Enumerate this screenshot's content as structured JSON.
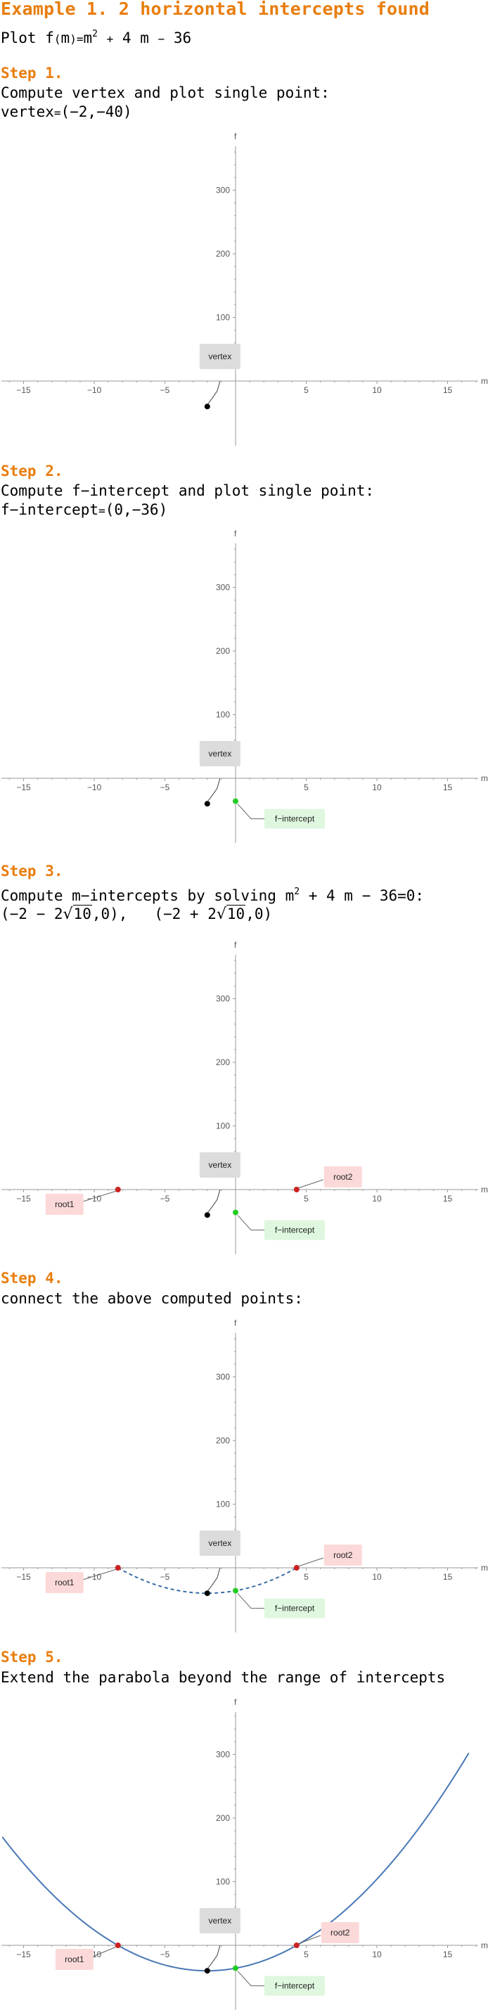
{
  "title": "Example 1. 2 horizontal intercepts found",
  "intro": {
    "plot_word": "Plot",
    "f": "f",
    "arg_open": "(",
    "m": "m",
    "arg_close": ")",
    "eq": "=",
    "m2_base": "m",
    "m2_exp": "2",
    "plus": "+",
    "four": "4",
    "space_m": "m",
    "minus": "−",
    "c": "36"
  },
  "steps": [
    {
      "heading": "Step 1.",
      "text": "Compute vertex and plot single point:",
      "result_label": "vertex",
      "result_value": "(−2,−40)"
    },
    {
      "heading": "Step 2.",
      "text": "Compute f−intercept and plot single point:",
      "result_label": "f−intercept",
      "result_value": "(0,−36)"
    },
    {
      "heading": "Step 3.",
      "text_a": "Compute m−intercepts by solving m",
      "text_exp": "2",
      "text_b": " + 4 m − 36=0:",
      "root1_a": "(−2 − 2",
      "root1_rad": "10",
      "root1_b": ",0),",
      "root2_a": "(−2 + 2",
      "root2_rad": "10",
      "root2_b": ",0)"
    },
    {
      "heading": "Step 4.",
      "text": "connect the above computed points:"
    },
    {
      "heading": "Step 5.",
      "text": "Extend the parabola beyond the range of intercepts"
    }
  ],
  "plot_labels": {
    "x_axis": "m",
    "y_axis": "f",
    "vertex": "vertex",
    "f_intercept": "f−intercept",
    "root1": "root1",
    "root2": "root2"
  },
  "chart_data": [
    {
      "type": "scatter",
      "points": [
        {
          "name": "vertex",
          "x": -2,
          "y": -40
        }
      ],
      "xlim": [
        -19,
        18
      ],
      "ylim": [
        -60,
        380
      ],
      "x_ticks": [
        -15,
        -10,
        -5,
        5,
        10,
        15
      ],
      "y_ticks": [
        100,
        200,
        300
      ],
      "xlabel": "m",
      "ylabel": "f",
      "colors": {
        "vertex": "#000000"
      }
    },
    {
      "type": "scatter",
      "points": [
        {
          "name": "vertex",
          "x": -2,
          "y": -40
        },
        {
          "name": "f-intercept",
          "x": 0,
          "y": -36
        }
      ],
      "xlim": [
        -19,
        18
      ],
      "ylim": [
        -60,
        380
      ],
      "x_ticks": [
        -15,
        -10,
        -5,
        5,
        10,
        15
      ],
      "y_ticks": [
        100,
        200,
        300
      ],
      "xlabel": "m",
      "ylabel": "f",
      "colors": {
        "vertex": "#000000",
        "f-intercept": "#22cc22"
      }
    },
    {
      "type": "scatter",
      "points": [
        {
          "name": "vertex",
          "x": -2,
          "y": -40
        },
        {
          "name": "f-intercept",
          "x": 0,
          "y": -36
        },
        {
          "name": "root1",
          "x": -8.32,
          "y": 0
        },
        {
          "name": "root2",
          "x": 4.32,
          "y": 0
        }
      ],
      "xlim": [
        -19,
        18
      ],
      "ylim": [
        -60,
        380
      ],
      "x_ticks": [
        -15,
        -10,
        -5,
        5,
        10,
        15
      ],
      "y_ticks": [
        100,
        200,
        300
      ],
      "xlabel": "m",
      "ylabel": "f",
      "colors": {
        "vertex": "#000000",
        "f-intercept": "#22cc22",
        "root": "#cc2222"
      }
    },
    {
      "type": "line",
      "function": "m^2+4m-36",
      "x_range": [
        -8.32,
        4.32
      ],
      "dashed": true,
      "points": [
        {
          "name": "vertex",
          "x": -2,
          "y": -40
        },
        {
          "name": "f-intercept",
          "x": 0,
          "y": -36
        },
        {
          "name": "root1",
          "x": -8.32,
          "y": 0
        },
        {
          "name": "root2",
          "x": 4.32,
          "y": 0
        }
      ],
      "xlim": [
        -19,
        18
      ],
      "ylim": [
        -60,
        380
      ],
      "x_ticks": [
        -15,
        -10,
        -5,
        5,
        10,
        15
      ],
      "y_ticks": [
        100,
        200,
        300
      ],
      "xlabel": "m",
      "ylabel": "f",
      "colors": {
        "curve": "#3a6ea5"
      }
    },
    {
      "type": "line",
      "function": "m^2+4m-36",
      "x_range": [
        -16.5,
        16.5
      ],
      "dashed": false,
      "points": [
        {
          "name": "vertex",
          "x": -2,
          "y": -40
        },
        {
          "name": "f-intercept",
          "x": 0,
          "y": -36
        },
        {
          "name": "root1",
          "x": -8.32,
          "y": 0
        },
        {
          "name": "root2",
          "x": 4.32,
          "y": 0
        }
      ],
      "xlim": [
        -19,
        18
      ],
      "ylim": [
        -60,
        380
      ],
      "x_ticks": [
        -15,
        -10,
        -5,
        5,
        10,
        15
      ],
      "y_ticks": [
        100,
        200,
        300
      ],
      "xlabel": "m",
      "ylabel": "f",
      "colors": {
        "curve": "#4a78b5"
      }
    }
  ]
}
